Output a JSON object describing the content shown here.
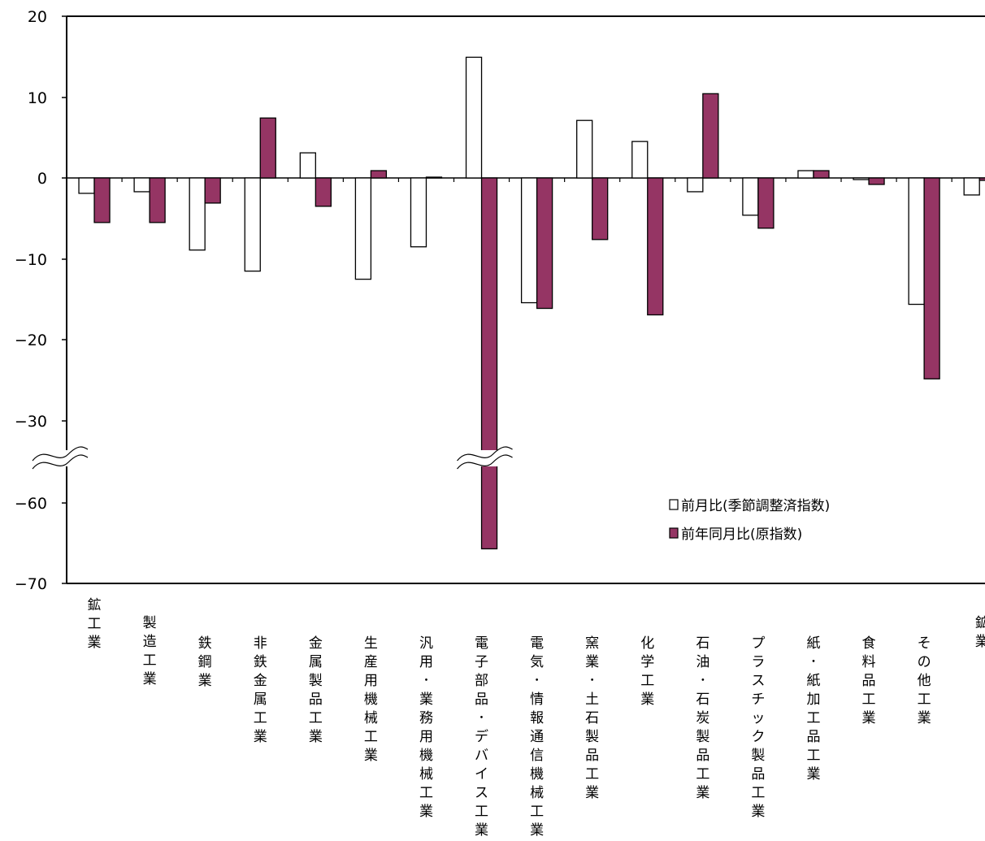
{
  "chart_data": {
    "type": "bar",
    "categories": [
      "鉱工業",
      "製造工業",
      "鉄鋼業",
      "非鉄金属工業",
      "金属製品工業",
      "生産用機械工業",
      "汎用･業務用機械工業",
      "電子部品･デバイス工業",
      "電気･情報通信機械工業",
      "窯業･土石製品工業",
      "化学工業",
      "石油･石炭製品工業",
      "プラスチック製品工業",
      "紙･紙加工品工業",
      "食料品工業",
      "その他工業",
      "鉱業"
    ],
    "series": [
      {
        "name": "前月比(季節調整済指数)",
        "color": "#ffffff",
        "values": [
          -1.9,
          -1.7,
          -8.9,
          -11.5,
          3.1,
          -12.5,
          -8.5,
          14.9,
          -15.4,
          7.1,
          4.5,
          -1.7,
          -4.6,
          0.9,
          -0.2,
          -15.6,
          -2.1
        ]
      },
      {
        "name": "前年同月比(原指数)",
        "color": "#953564",
        "values": [
          -5.5,
          -5.5,
          -3.1,
          7.4,
          -3.5,
          0.9,
          0.1,
          -65.7,
          -16.1,
          -7.6,
          -16.9,
          10.4,
          -6.2,
          0.9,
          -0.8,
          -24.8,
          -0.3
        ]
      }
    ],
    "yticks": [
      "20",
      "10",
      "0",
      "-10",
      "-20",
      "-30",
      "-60",
      "-70"
    ],
    "ylim": [
      -70,
      20
    ],
    "axis_break": {
      "from": -30,
      "to": -60
    },
    "legend": {
      "position": "lower-right"
    },
    "grid": false
  }
}
